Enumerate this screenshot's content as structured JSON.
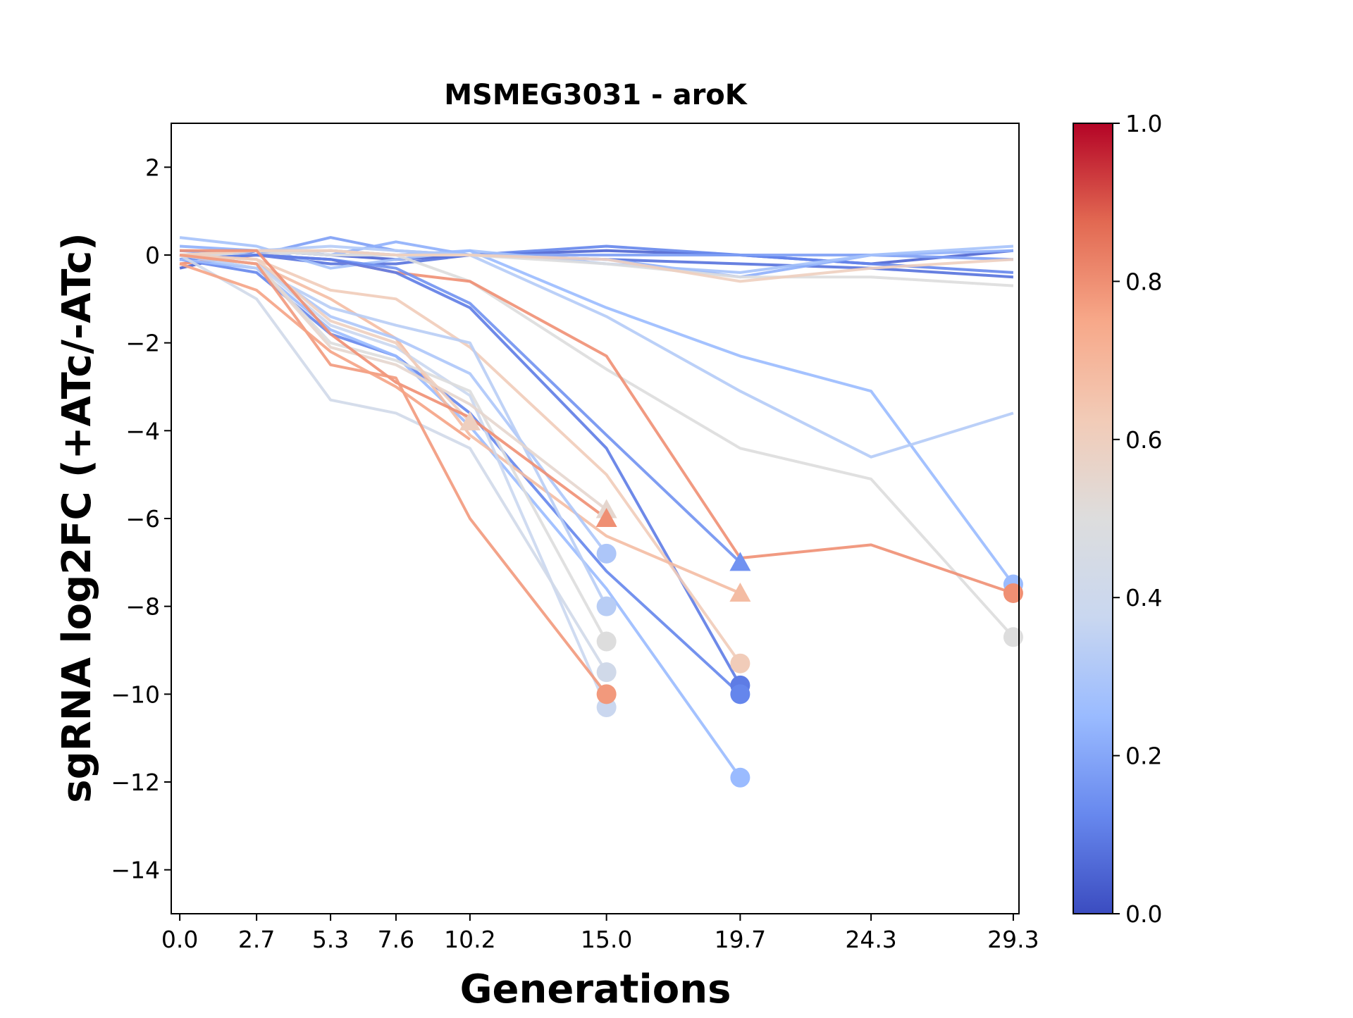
{
  "chart_data": {
    "type": "line",
    "title": "MSMEG3031 - aroK",
    "xlabel": "Generations",
    "ylabel": "sgRNA log2FC (+ATc/-ATc)",
    "xlim": [
      -0.3,
      29.5
    ],
    "ylim": [
      -15,
      3
    ],
    "x_ticks": [
      0.0,
      2.7,
      5.3,
      7.6,
      10.2,
      15.0,
      19.7,
      24.3,
      29.3
    ],
    "x_tick_labels": [
      "0.0",
      "2.7",
      "5.3",
      "7.6",
      "10.2",
      "15.0",
      "19.7",
      "24.3",
      "29.3"
    ],
    "y_ticks": [
      2,
      0,
      -2,
      -4,
      -6,
      -8,
      -10,
      -12,
      -14
    ],
    "y_tick_labels": [
      "2",
      "0",
      "−2",
      "−4",
      "−6",
      "−8",
      "−10",
      "−12",
      "−14"
    ],
    "grid": false,
    "legend": "none",
    "colorbar": {
      "colormap": "coolwarm",
      "range": [
        0.0,
        1.0
      ],
      "ticks": [
        0.0,
        0.2,
        0.4,
        0.6,
        0.8,
        1.0
      ],
      "tick_labels": [
        "0.0",
        "0.2",
        "0.4",
        "0.6",
        "0.8",
        "1.0"
      ],
      "stops": [
        "#3b4cc0",
        "#6788ee",
        "#9abbff",
        "#c9d7f0",
        "#dddddd",
        "#f2cbb7",
        "#f7a889",
        "#e26952",
        "#b40426"
      ]
    },
    "series": [
      {
        "color_value": 0.05,
        "x": [
          0.0,
          2.7,
          5.3,
          7.6,
          10.2,
          15.0,
          19.7,
          24.3,
          29.3
        ],
        "y": [
          -0.3,
          0.1,
          0.0,
          -0.1,
          0.0,
          0.1,
          0.0,
          -0.2,
          0.1
        ]
      },
      {
        "color_value": 0.08,
        "x": [
          0.0,
          2.7,
          5.3,
          7.6,
          10.2,
          15.0,
          19.7,
          24.3,
          29.3
        ],
        "y": [
          -0.1,
          0.0,
          -0.2,
          -0.2,
          0.0,
          -0.1,
          -0.2,
          -0.3,
          -0.5
        ]
      },
      {
        "color_value": 0.12,
        "x": [
          0.0,
          2.7,
          5.3,
          7.6,
          10.2,
          15.0,
          19.7,
          24.3,
          29.3
        ],
        "y": [
          0.0,
          0.0,
          0.1,
          0.0,
          0.0,
          0.2,
          0.0,
          -0.2,
          -0.4
        ]
      },
      {
        "color_value": 0.18,
        "x": [
          0.0,
          2.7,
          5.3,
          7.6,
          10.2,
          15.0,
          19.7,
          24.3,
          29.3
        ],
        "y": [
          0.1,
          0.0,
          0.4,
          0.1,
          0.0,
          0.0,
          0.0,
          0.0,
          -0.1
        ]
      },
      {
        "color_value": 0.22,
        "x": [
          0.0,
          2.7,
          5.3,
          7.6,
          10.2,
          15.0,
          19.7,
          24.3,
          29.3
        ],
        "y": [
          0.2,
          0.1,
          0.0,
          0.3,
          0.0,
          -0.1,
          -0.5,
          0.0,
          0.1
        ]
      },
      {
        "color_value": 0.28,
        "x": [
          0.0,
          2.7,
          5.3,
          7.6,
          10.2,
          15.0,
          19.7,
          24.3,
          29.3
        ],
        "y": [
          0.4,
          0.2,
          -0.3,
          -0.1,
          0.1,
          -0.2,
          -0.4,
          0.0,
          0.2
        ]
      },
      {
        "color_value": 0.25,
        "x": [
          0.0,
          2.7,
          5.3,
          7.6,
          10.2,
          15.0,
          19.7,
          24.3,
          29.3
        ],
        "y": [
          -0.1,
          0.1,
          0.0,
          0.0,
          0.1,
          -1.2,
          -2.3,
          -3.1,
          -7.5
        ],
        "end_marker": "circle"
      },
      {
        "color_value": 0.32,
        "x": [
          0.0,
          2.7,
          5.3,
          7.6,
          10.2,
          15.0,
          19.7,
          24.3,
          29.3
        ],
        "y": [
          0.0,
          0.1,
          0.2,
          0.1,
          0.0,
          -1.4,
          -3.1,
          -4.6,
          -3.6
        ]
      },
      {
        "color_value": 0.5,
        "x": [
          0.0,
          2.7,
          5.3,
          7.6,
          10.2,
          15.0,
          19.7,
          24.3,
          29.3
        ],
        "y": [
          0.0,
          0.1,
          0.0,
          0.0,
          -0.6,
          -2.6,
          -4.4,
          -5.1,
          -8.7
        ],
        "end_marker": "circle"
      },
      {
        "color_value": 0.5,
        "x": [
          0.0,
          2.7,
          5.3,
          7.6,
          10.2,
          15.0,
          19.7,
          24.3,
          29.3
        ],
        "y": [
          0.0,
          0.0,
          0.1,
          0.0,
          0.0,
          -0.2,
          -0.5,
          -0.5,
          -0.7
        ]
      },
      {
        "color_value": 0.6,
        "x": [
          0.0,
          2.7,
          5.3,
          7.6,
          10.2,
          15.0,
          19.7,
          24.3,
          29.3
        ],
        "y": [
          0.0,
          0.1,
          0.1,
          0.0,
          0.0,
          -0.1,
          -0.6,
          -0.3,
          -0.1
        ]
      },
      {
        "color_value": 0.8,
        "x": [
          0.0,
          2.7,
          5.3,
          7.6,
          10.2,
          15.0,
          19.7,
          24.3,
          29.3
        ],
        "y": [
          -0.2,
          0.0,
          -0.1,
          -0.4,
          -0.6,
          -2.3,
          -6.9,
          -6.6,
          -7.7
        ],
        "end_marker": "circle"
      },
      {
        "color_value": 0.15,
        "x": [
          0.0,
          2.7,
          5.3,
          7.6,
          10.2,
          15.0,
          19.7
        ],
        "y": [
          -0.1,
          0.0,
          -0.1,
          -0.3,
          -1.1,
          -4.1,
          -7.0
        ],
        "end_marker": "triangle"
      },
      {
        "color_value": 0.1,
        "x": [
          0.0,
          2.7,
          5.3,
          7.6,
          10.2,
          15.0,
          19.7
        ],
        "y": [
          -0.1,
          0.0,
          -0.1,
          -0.4,
          -1.2,
          -4.4,
          -9.8
        ],
        "end_marker": "circle"
      },
      {
        "color_value": 0.12,
        "x": [
          0.0,
          2.7,
          5.3,
          7.6,
          10.2,
          15.0,
          19.7
        ],
        "y": [
          -0.1,
          -0.4,
          -1.8,
          -2.3,
          -3.6,
          -7.2,
          -10.0
        ],
        "end_marker": "circle"
      },
      {
        "color_value": 0.25,
        "x": [
          0.0,
          2.7,
          5.3,
          7.6,
          10.2,
          15.0,
          19.7
        ],
        "y": [
          -0.1,
          -0.3,
          -1.7,
          -2.3,
          -3.9,
          -7.6,
          -11.9
        ],
        "end_marker": "circle"
      },
      {
        "color_value": 0.62,
        "x": [
          0.0,
          2.7,
          5.3,
          7.6,
          10.2,
          15.0,
          19.7
        ],
        "y": [
          0.0,
          -0.1,
          -0.8,
          -1.0,
          -2.1,
          -5.0,
          -9.3
        ],
        "end_marker": "circle"
      },
      {
        "color_value": 0.68,
        "x": [
          0.0,
          2.7,
          5.3,
          7.6,
          10.2,
          15.0,
          19.7
        ],
        "y": [
          0.0,
          -0.2,
          -1.0,
          -1.9,
          -4.1,
          -6.4,
          -7.7
        ],
        "end_marker": "triangle"
      },
      {
        "color_value": 0.3,
        "x": [
          0.0,
          2.7,
          5.3,
          7.6,
          10.2,
          15.0
        ],
        "y": [
          0.0,
          -0.2,
          -1.4,
          -1.9,
          -2.7,
          -6.8
        ],
        "end_marker": "circle"
      },
      {
        "color_value": 0.33,
        "x": [
          0.0,
          2.7,
          5.3,
          7.6,
          10.2,
          15.0
        ],
        "y": [
          0.0,
          -0.3,
          -1.2,
          -1.6,
          -2.0,
          -8.0
        ],
        "end_marker": "circle"
      },
      {
        "color_value": 0.38,
        "x": [
          0.0,
          2.7,
          5.3,
          7.6,
          10.2,
          15.0
        ],
        "y": [
          0.0,
          -0.2,
          -1.6,
          -2.1,
          -3.2,
          -10.3
        ],
        "end_marker": "circle"
      },
      {
        "color_value": 0.42,
        "x": [
          0.0,
          2.7,
          5.3,
          7.6,
          10.2,
          15.0
        ],
        "y": [
          0.0,
          -1.0,
          -3.3,
          -3.6,
          -4.4,
          -9.5
        ],
        "end_marker": "circle"
      },
      {
        "color_value": 0.5,
        "x": [
          0.0,
          2.7,
          5.3,
          7.6,
          10.2,
          15.0
        ],
        "y": [
          0.0,
          -0.2,
          -2.0,
          -2.4,
          -3.1,
          -8.8
        ],
        "end_marker": "circle"
      },
      {
        "color_value": 0.55,
        "x": [
          0.0,
          2.7,
          5.3,
          7.6,
          10.2,
          15.0
        ],
        "y": [
          0.0,
          -0.2,
          -2.1,
          -2.5,
          -3.4,
          -5.8
        ],
        "end_marker": "triangle"
      },
      {
        "color_value": 0.6,
        "x": [
          0.0,
          2.7,
          5.3,
          7.6,
          10.2
        ],
        "y": [
          0.0,
          -0.1,
          -1.5,
          -2.0,
          -3.8
        ],
        "end_marker": "triangle"
      },
      {
        "color_value": 0.8,
        "x": [
          0.0,
          2.7,
          5.3,
          7.6,
          10.2,
          15.0
        ],
        "y": [
          0.1,
          0.1,
          -1.8,
          -2.9,
          -3.7,
          -6.0
        ],
        "end_marker": "triangle"
      },
      {
        "color_value": 0.78,
        "x": [
          0.0,
          2.7,
          5.3,
          7.6,
          10.2,
          15.0
        ],
        "y": [
          0.0,
          -0.2,
          -2.5,
          -2.8,
          -6.0,
          -10.0
        ],
        "end_marker": "circle"
      },
      {
        "color_value": 0.76,
        "x": [
          0.0,
          2.7,
          5.3,
          7.6,
          10.2
        ],
        "y": [
          -0.2,
          -0.8,
          -2.2,
          -3.0,
          -4.2
        ]
      }
    ]
  }
}
